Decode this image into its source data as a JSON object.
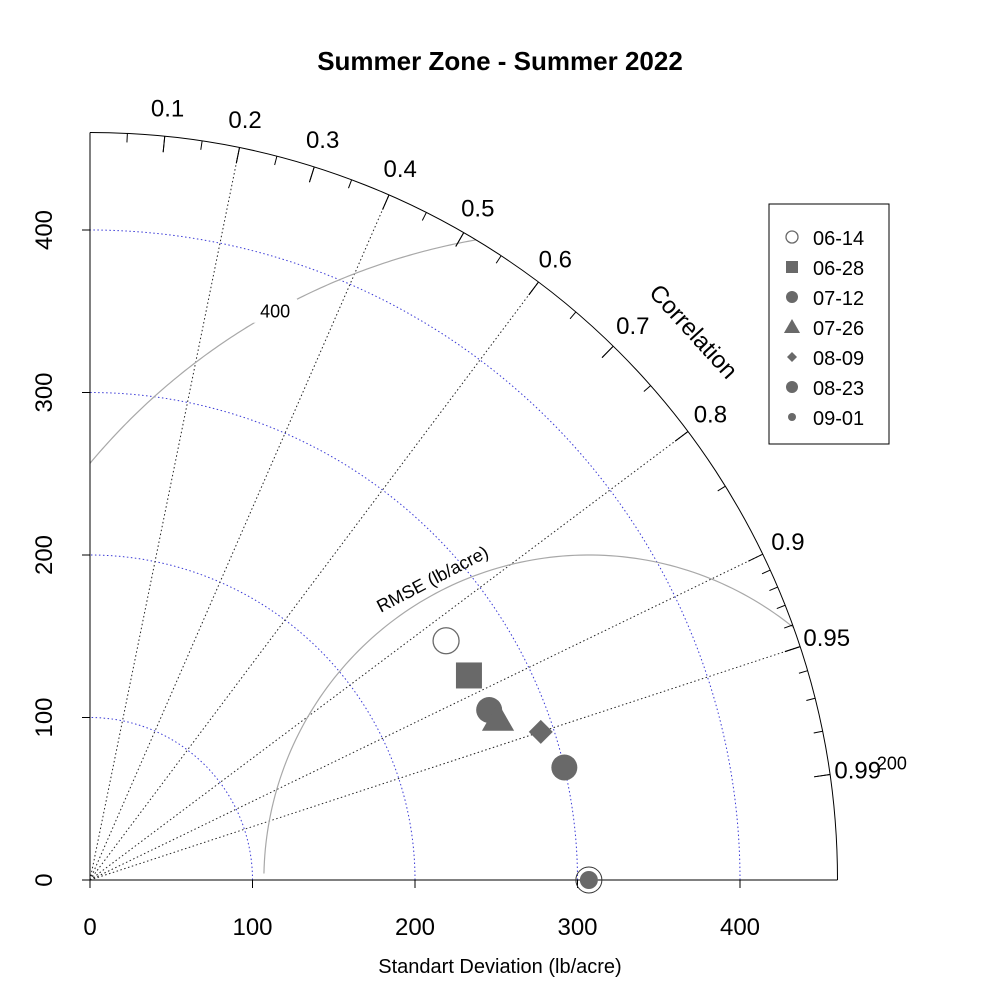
{
  "chart_data": {
    "type": "taylor",
    "title": "Summer Zone - Summer 2022",
    "xlabel": "Standart Deviation (lb/acre)",
    "ylabel": "",
    "corr_axis_label": "Correlation",
    "rmse_label": "RMSE (lb/acre)",
    "sd_range": [
      0,
      460
    ],
    "sd_ticks": [
      0,
      100,
      200,
      300,
      400
    ],
    "sd_tick_labels": [
      "0",
      "100",
      "200",
      "300",
      "400"
    ],
    "sd_gridlines": [
      100,
      200,
      300,
      400
    ],
    "corr_labels": [
      {
        "value": 0.1,
        "text": "0.1"
      },
      {
        "value": 0.2,
        "text": "0.2"
      },
      {
        "value": 0.3,
        "text": "0.3"
      },
      {
        "value": 0.4,
        "text": "0.4"
      },
      {
        "value": 0.5,
        "text": "0.5"
      },
      {
        "value": 0.6,
        "text": "0.6"
      },
      {
        "value": 0.7,
        "text": "0.7"
      },
      {
        "value": 0.8,
        "text": "0.8"
      },
      {
        "value": 0.9,
        "text": "0.9"
      },
      {
        "value": 0.95,
        "text": "0.95"
      },
      {
        "value": 0.99,
        "text": "0.99"
      }
    ],
    "corr_gridlines": [
      0.2,
      0.4,
      0.6,
      0.8,
      0.9,
      0.95
    ],
    "rmse_contours": [
      {
        "value": 200,
        "text": "200"
      },
      {
        "value": 400,
        "text": "400"
      }
    ],
    "reference": {
      "sd": 307,
      "corr": 1.0
    },
    "series": [
      {
        "name": "06-14",
        "marker": "open-circle",
        "sd": 264,
        "corr": 0.83
      },
      {
        "name": "06-28",
        "marker": "square",
        "sd": 265,
        "corr": 0.88
      },
      {
        "name": "07-12",
        "marker": "circle",
        "sd": 267,
        "corr": 0.92
      },
      {
        "name": "07-26",
        "marker": "triangle",
        "sd": 270,
        "corr": 0.93
      },
      {
        "name": "08-09",
        "marker": "diamond",
        "sd": 292,
        "corr": 0.95
      },
      {
        "name": "08-23",
        "marker": "circle",
        "sd": 300,
        "corr": 0.973
      },
      {
        "name": "09-01",
        "marker": "small-circle",
        "sd": 307,
        "corr": 1.0
      }
    ],
    "colors": {
      "marker": "#696969",
      "sd_grid": "#3a3ad6",
      "corr_grid": "#222222",
      "rmse": "#a8a8a8",
      "axis": "#000000"
    },
    "legend_position": "top-right",
    "grid": true
  }
}
